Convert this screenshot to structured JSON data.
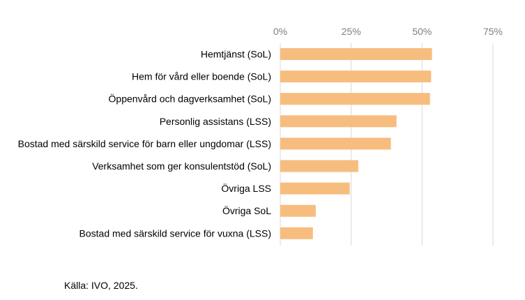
{
  "chart_data": {
    "type": "bar",
    "orientation": "horizontal",
    "title": "",
    "xlabel": "",
    "ylabel": "",
    "xlim": [
      0,
      75
    ],
    "x_ticks": [
      0,
      25,
      50,
      75
    ],
    "tick_suffix": "%",
    "grid": true,
    "bar_color": "#f7bd7e",
    "grid_color": "#d9d9d9",
    "categories": [
      "Hemtjänst (SoL)",
      "Hem för vård eller boende (SoL)",
      "Öppenvård och dagverksamhet (SoL)",
      "Personlig assistans (LSS)",
      "Bostad med särskild service för barn eller ungdomar (LSS)",
      "Verksamhet som ger konsulentstöd (SoL)",
      "Övriga LSS",
      "Övriga SoL",
      "Bostad med särskild service för vuxna (LSS)"
    ],
    "values": [
      53.5,
      53.2,
      52.8,
      41,
      39,
      27.5,
      24.5,
      12.5,
      11.5
    ]
  },
  "source": "Källa: IVO, 2025."
}
